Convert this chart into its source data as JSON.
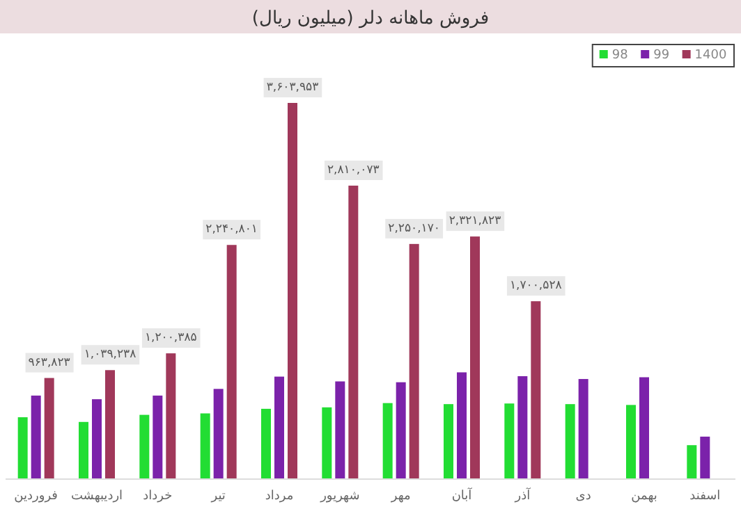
{
  "chart_data": {
    "type": "bar",
    "title": "فروش ماهانه دلر (میلیون ریال)",
    "legend": "top right",
    "categories": [
      "فروردین",
      "اردیبهشت",
      "خرداد",
      "تیر",
      "مرداد",
      "شهریور",
      "مهر",
      "آبان",
      "آذر",
      "دی",
      "بهمن",
      "اسفند"
    ],
    "series": [
      {
        "name": "98",
        "color": "#22dd33",
        "values": [
          587000,
          542000,
          610000,
          624000,
          668000,
          682000,
          723000,
          713000,
          719000,
          713000,
          705000,
          319000
        ]
      },
      {
        "name": "99",
        "color": "#7b22aa",
        "values": [
          795000,
          760000,
          795000,
          859000,
          977000,
          931000,
          923000,
          1018000,
          981000,
          954000,
          971000,
          401000
        ]
      },
      {
        "name": "1400",
        "color": "#a0385a",
        "values": [
          963823,
          1039238,
          1200385,
          2240801,
          3603953,
          2810073,
          2250170,
          2321823,
          1700528,
          null,
          null,
          null
        ],
        "value_labels": [
          "۹۶۳,۸۲۳",
          "۱,۰۳۹,۲۳۸",
          "۱,۲۰۰,۳۸۵",
          "۲,۲۴۰,۸۰۱",
          "۳,۶۰۳,۹۵۳",
          "۲,۸۱۰,۰۷۳",
          "۲,۲۵۰,۱۷۰",
          "۲,۳۲۱,۸۲۳",
          "۱,۷۰۰,۵۲۸",
          null,
          null,
          null
        ]
      }
    ]
  }
}
